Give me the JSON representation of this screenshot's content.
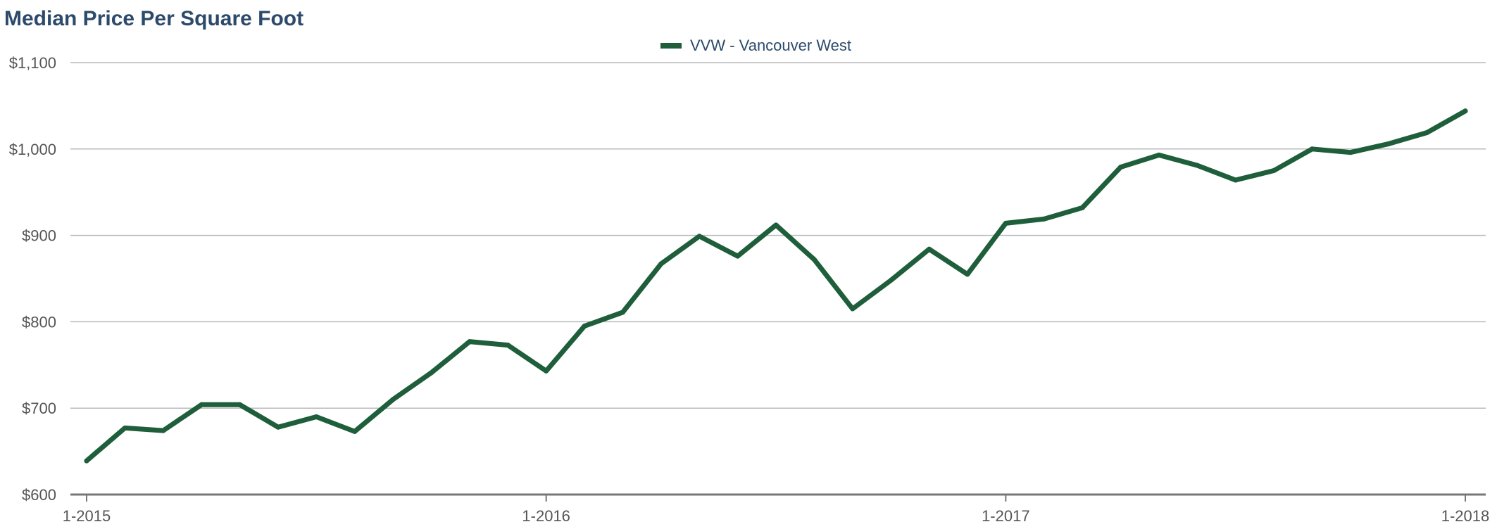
{
  "chart_data": {
    "type": "line",
    "title": "Median Price Per Square Foot",
    "xlabel": "",
    "ylabel": "",
    "ylim": [
      600,
      1100
    ],
    "y_ticks": [
      600,
      700,
      800,
      900,
      1000,
      1100
    ],
    "y_tick_labels": [
      "$600",
      "$700",
      "$800",
      "$900",
      "$1,000",
      "$1,100"
    ],
    "x_tick_labels": [
      "1-2015",
      "1-2016",
      "1-2017",
      "1-2018"
    ],
    "x": [
      "1-2015",
      "2-2015",
      "3-2015",
      "4-2015",
      "5-2015",
      "6-2015",
      "7-2015",
      "8-2015",
      "9-2015",
      "10-2015",
      "11-2015",
      "12-2015",
      "1-2016",
      "2-2016",
      "3-2016",
      "4-2016",
      "5-2016",
      "6-2016",
      "7-2016",
      "8-2016",
      "9-2016",
      "10-2016",
      "11-2016",
      "12-2016",
      "1-2017",
      "2-2017",
      "3-2017",
      "4-2017",
      "5-2017",
      "6-2017",
      "7-2017",
      "8-2017",
      "9-2017",
      "10-2017",
      "11-2017",
      "12-2017",
      "1-2018"
    ],
    "grid": true,
    "legend_position": "top-center",
    "series": [
      {
        "name": "VVW - Vancouver West",
        "color": "#1e5e3b",
        "values": [
          639,
          677,
          674,
          704,
          704,
          678,
          690,
          673,
          710,
          741,
          777,
          773,
          743,
          795,
          811,
          867,
          899,
          876,
          912,
          872,
          815,
          848,
          884,
          855,
          914,
          919,
          932,
          979,
          993,
          981,
          964,
          975,
          1000,
          996,
          1006,
          1019,
          1044
        ]
      }
    ]
  }
}
